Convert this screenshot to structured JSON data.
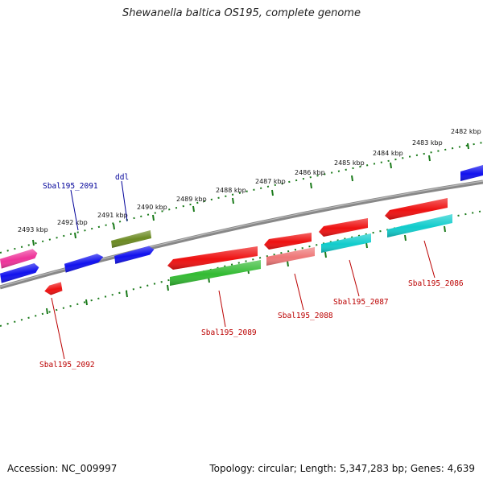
{
  "title": "Shewanella baltica OS195, complete genome",
  "footer": {
    "accession": "Accession: NC_009997",
    "summary": "Topology: circular; Length: 5,347,283 bp; Genes: 4,639"
  },
  "scale_labels": [
    "2482 kbp",
    "2483 kbp",
    "2484 kbp",
    "2485 kbp",
    "2486 kbp",
    "2487 kbp",
    "2488 kbp",
    "2489 kbp",
    "2490 kbp",
    "2491 kbp",
    "2492 kbp",
    "2493 kbp"
  ],
  "gene_labels": {
    "sbal2091": "Sbal195_2091",
    "ddl": "ddl",
    "sbal2086": "Sbal195_2086",
    "sbal2087": "Sbal195_2087",
    "sbal2088": "Sbal195_2088",
    "sbal2089": "Sbal195_2089",
    "sbal2092": "Sbal195_2092"
  },
  "colors": {
    "backbone": "#888888",
    "tick": "#1a7a1a",
    "red": "#ee1111",
    "blue": "#1111ee",
    "olive": "#6b8a22",
    "green": "#33bb33",
    "cyan": "#11cccc",
    "salmon": "#ee7777",
    "pink": "#ee3399",
    "label_top": "#000099",
    "label_bottom": "#bb0000"
  }
}
